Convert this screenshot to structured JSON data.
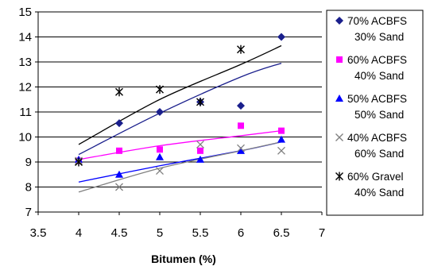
{
  "chart_data": {
    "type": "scatter",
    "title": "",
    "xlabel": "Bitumen (%)",
    "ylabel": "",
    "xlim": [
      3.5,
      7
    ],
    "ylim": [
      7,
      15
    ],
    "xticks": [
      "3.5",
      "4",
      "4.5",
      "5",
      "5.5",
      "6",
      "6.5",
      "7"
    ],
    "yticks": [
      "7",
      "8",
      "9",
      "10",
      "11",
      "12",
      "13",
      "14",
      "15"
    ],
    "grid": "horizontal",
    "legend_position": "right",
    "series": [
      {
        "name": "70% ACBFS 30% Sand",
        "legend_lines": [
          "70% ACBFS",
          "30% Sand"
        ],
        "marker": "diamond",
        "color": "#1a1f8c",
        "x": [
          4.5,
          5,
          5.5,
          6,
          6.5
        ],
        "y": [
          10.55,
          11.0,
          11.4,
          11.25,
          14.0
        ],
        "trend": {
          "x": [
            4,
            5,
            6,
            6.5
          ],
          "y": [
            9.3,
            10.95,
            12.4,
            12.95
          ]
        }
      },
      {
        "name": "60% ACBFS 40% Sand",
        "legend_lines": [
          "60% ACBFS",
          "40% Sand"
        ],
        "marker": "square",
        "color": "#ff00ff",
        "x": [
          4,
          4.5,
          5,
          5.5,
          6,
          6.5
        ],
        "y": [
          9.05,
          9.45,
          9.5,
          9.45,
          10.45,
          10.25
        ],
        "trend": {
          "x": [
            4,
            5,
            6,
            6.5
          ],
          "y": [
            9.1,
            9.65,
            10.05,
            10.25
          ]
        }
      },
      {
        "name": "50% ACBFS 50% Sand",
        "legend_lines": [
          "50% ACBFS",
          "50% Sand"
        ],
        "marker": "triangle",
        "color": "#0000ff",
        "x": [
          4,
          4.5,
          5,
          5.5,
          6,
          6.5
        ],
        "y": [
          9.1,
          8.5,
          9.2,
          9.1,
          9.45,
          9.9
        ],
        "trend": {
          "x": [
            4,
            5,
            6,
            6.5
          ],
          "y": [
            8.2,
            8.85,
            9.45,
            9.8
          ]
        }
      },
      {
        "name": "40% ACBFS 60% Sand",
        "legend_lines": [
          "40% ACBFS",
          "60% Sand"
        ],
        "marker": "x",
        "color": "#808080",
        "x": [
          4,
          4.5,
          5,
          5.5,
          6,
          6.5
        ],
        "y": [
          9.05,
          8.0,
          8.65,
          9.7,
          9.55,
          9.45
        ],
        "trend": {
          "x": [
            4,
            5,
            6,
            6.5
          ],
          "y": [
            7.8,
            8.75,
            9.45,
            9.8
          ]
        }
      },
      {
        "name": "60% Gravel 40% Sand",
        "legend_lines": [
          "60% Gravel",
          "40% Sand"
        ],
        "marker": "star",
        "color": "#000000",
        "x": [
          4,
          4.5,
          5,
          5.5,
          6
        ],
        "y": [
          9.0,
          11.8,
          11.9,
          11.4,
          13.5
        ],
        "trend": {
          "x": [
            4,
            5,
            6,
            6.5
          ],
          "y": [
            9.7,
            11.5,
            12.9,
            13.65
          ]
        }
      }
    ]
  }
}
